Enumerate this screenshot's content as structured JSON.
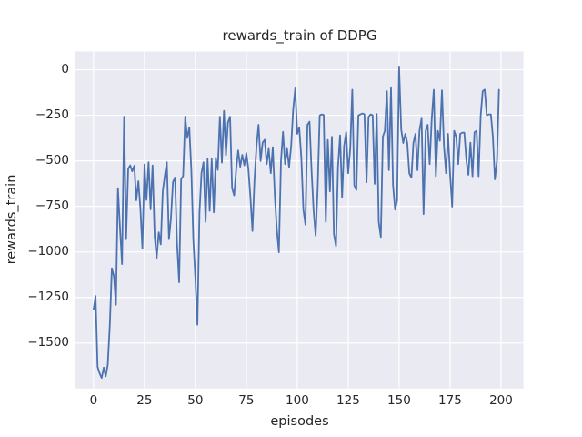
{
  "figure": {
    "title": "rewards_train of DDPG",
    "x_axis_label": "episodes",
    "y_axis_label": "rewards_train"
  },
  "colors": {
    "figure_background": "#ffffff",
    "axes_background": "#eaeaf2",
    "grid_line": "#ffffff",
    "series_line": "#4c72b0",
    "text": "#262626"
  },
  "chart_data": {
    "type": "line",
    "title": "rewards_train of DDPG",
    "xlabel": "episodes",
    "ylabel": "rewards_train",
    "grid": true,
    "legend": "none",
    "xlim": [
      -9,
      211
    ],
    "ylim": [
      -1750,
      100
    ],
    "x_ticks": [
      0,
      25,
      50,
      75,
      100,
      125,
      150,
      175,
      200
    ],
    "x_tick_labels": [
      "0",
      "25",
      "50",
      "75",
      "100",
      "125",
      "150",
      "175",
      "200"
    ],
    "y_ticks": [
      0,
      -250,
      -500,
      -750,
      -1000,
      -1250,
      -1500
    ],
    "y_tick_labels": [
      "0",
      "−250",
      "−500",
      "−750",
      "−1000",
      "−1250",
      "−1500"
    ],
    "series": [
      {
        "name": "rewards_train",
        "color": "#4c72b0",
        "x_start": 0,
        "x_step": 1,
        "values": [
          -1317,
          -1242,
          -1630,
          -1667,
          -1692,
          -1635,
          -1683,
          -1620,
          -1400,
          -1090,
          -1135,
          -1290,
          -650,
          -870,
          -1067,
          -258,
          -930,
          -545,
          -525,
          -558,
          -527,
          -717,
          -612,
          -762,
          -980,
          -520,
          -715,
          -508,
          -767,
          -525,
          -917,
          -1033,
          -892,
          -958,
          -667,
          -580,
          -508,
          -930,
          -815,
          -617,
          -592,
          -953,
          -1167,
          -600,
          -583,
          -258,
          -375,
          -317,
          -550,
          -933,
          -1150,
          -1400,
          -784,
          -567,
          -508,
          -835,
          -490,
          -775,
          -490,
          -783,
          -483,
          -550,
          -258,
          -510,
          -225,
          -470,
          -290,
          -258,
          -650,
          -690,
          -550,
          -443,
          -533,
          -467,
          -525,
          -458,
          -542,
          -700,
          -885,
          -600,
          -420,
          -302,
          -501,
          -400,
          -384,
          -518,
          -434,
          -568,
          -425,
          -702,
          -880,
          -1002,
          -501,
          -341,
          -518,
          -434,
          -535,
          -418,
          -218,
          -102,
          -352,
          -318,
          -485,
          -768,
          -850,
          -302,
          -285,
          -551,
          -768,
          -910,
          -658,
          -251,
          -245,
          -248,
          -835,
          -385,
          -668,
          -368,
          -902,
          -968,
          -535,
          -360,
          -702,
          -418,
          -343,
          -568,
          -430,
          -110,
          -635,
          -660,
          -251,
          -245,
          -240,
          -245,
          -618,
          -259,
          -245,
          -250,
          -627,
          -243,
          -835,
          -918,
          -368,
          -335,
          -118,
          -551,
          -101,
          -635,
          -768,
          -718,
          13,
          -327,
          -402,
          -352,
          -402,
          -568,
          -593,
          -402,
          -352,
          -552,
          -335,
          -268,
          -793,
          -335,
          -302,
          -518,
          -268,
          -110,
          -585,
          -335,
          -390,
          -113,
          -418,
          -568,
          -352,
          -568,
          -752,
          -335,
          -368,
          -518,
          -352,
          -345,
          -345,
          -501,
          -577,
          -400,
          -585,
          -343,
          -335,
          -585,
          -252,
          -118,
          -109,
          -250,
          -245,
          -245,
          -368,
          -602,
          -501,
          -110
        ]
      }
    ]
  }
}
